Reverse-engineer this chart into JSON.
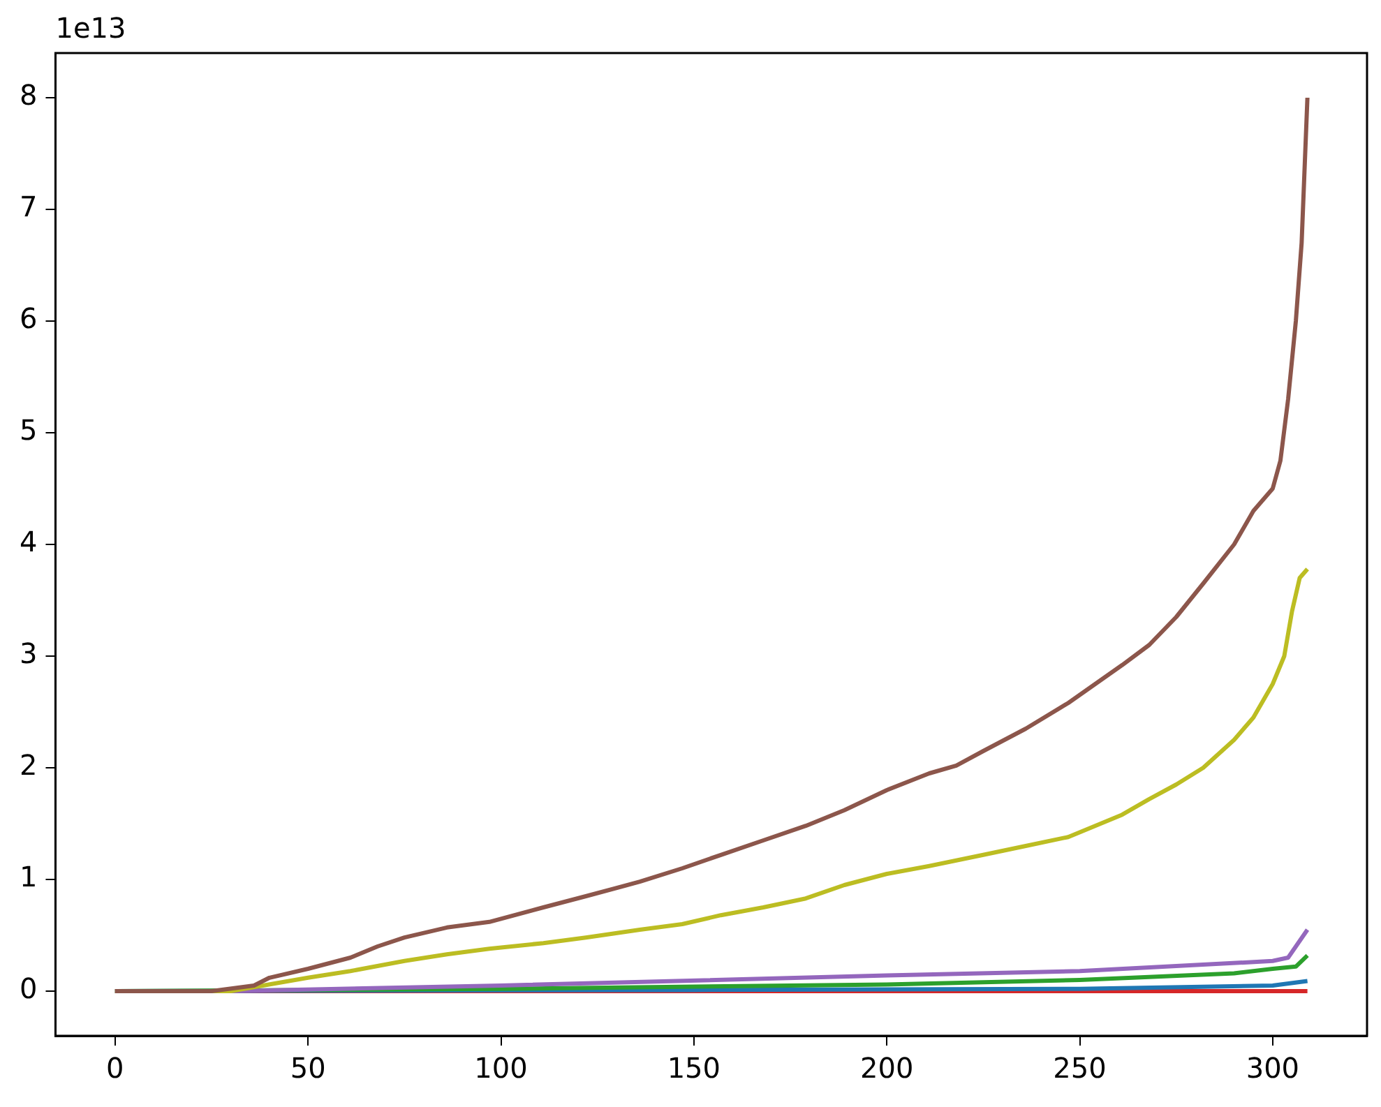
{
  "chart_data": {
    "type": "line",
    "annotations": [
      "1e13"
    ],
    "xlim": [
      -15.45,
      324.45
    ],
    "xticks": [
      0,
      50,
      100,
      150,
      200,
      250,
      300
    ],
    "ylim": [
      -0.4,
      8.4
    ],
    "yticks": [
      0,
      1,
      2,
      3,
      4,
      5,
      6,
      7,
      8
    ],
    "grid": false,
    "legend": false,
    "marker": "none",
    "line_style": "solid",
    "series": [
      {
        "color": "#8c564b",
        "x": [
          0,
          25,
          36,
          40,
          50,
          61,
          68,
          75,
          86,
          97,
          111,
          122,
          136,
          147,
          157,
          168,
          179,
          189,
          200,
          211,
          218,
          225,
          236,
          247,
          254,
          261,
          268,
          275,
          282,
          290,
          295,
          300,
          302,
          304,
          306,
          307.5,
          309
        ],
        "values": [
          0,
          0,
          0.05,
          0.12,
          0.2,
          0.3,
          0.4,
          0.48,
          0.57,
          0.62,
          0.75,
          0.85,
          0.98,
          1.1,
          1.22,
          1.35,
          1.48,
          1.62,
          1.8,
          1.95,
          2.02,
          2.15,
          2.35,
          2.58,
          2.75,
          2.92,
          3.1,
          3.35,
          3.65,
          4.0,
          4.3,
          4.5,
          4.75,
          5.3,
          6.0,
          6.7,
          8.0
        ]
      },
      {
        "color": "#bcbd22",
        "x": [
          0,
          30,
          50,
          61,
          75,
          86,
          97,
          111,
          122,
          136,
          147,
          157,
          168,
          179,
          189,
          200,
          211,
          225,
          236,
          247,
          254,
          261,
          268,
          275,
          282,
          290,
          295,
          300,
          303,
          305,
          307,
          309
        ],
        "values": [
          0,
          0,
          0.12,
          0.18,
          0.27,
          0.33,
          0.38,
          0.43,
          0.48,
          0.55,
          0.6,
          0.68,
          0.75,
          0.83,
          0.95,
          1.05,
          1.12,
          1.22,
          1.3,
          1.38,
          1.48,
          1.58,
          1.72,
          1.85,
          2.0,
          2.25,
          2.45,
          2.75,
          3.0,
          3.4,
          3.7,
          3.78
        ]
      },
      {
        "color": "#9467bd",
        "x": [
          0,
          30,
          100,
          200,
          250,
          300,
          304,
          306,
          309
        ],
        "values": [
          0,
          0,
          0.05,
          0.14,
          0.18,
          0.27,
          0.3,
          0.4,
          0.55
        ]
      },
      {
        "color": "#2ca02c",
        "x": [
          0,
          100,
          200,
          250,
          290,
          300,
          306,
          309
        ],
        "values": [
          0,
          0.02,
          0.06,
          0.1,
          0.16,
          0.2,
          0.22,
          0.32
        ]
      },
      {
        "color": "#1f77b4",
        "x": [
          0,
          150,
          250,
          300,
          309
        ],
        "values": [
          0,
          0.01,
          0.02,
          0.05,
          0.09
        ]
      },
      {
        "color": "#d62728",
        "x": [
          0,
          309
        ],
        "values": [
          0,
          0
        ]
      }
    ]
  }
}
